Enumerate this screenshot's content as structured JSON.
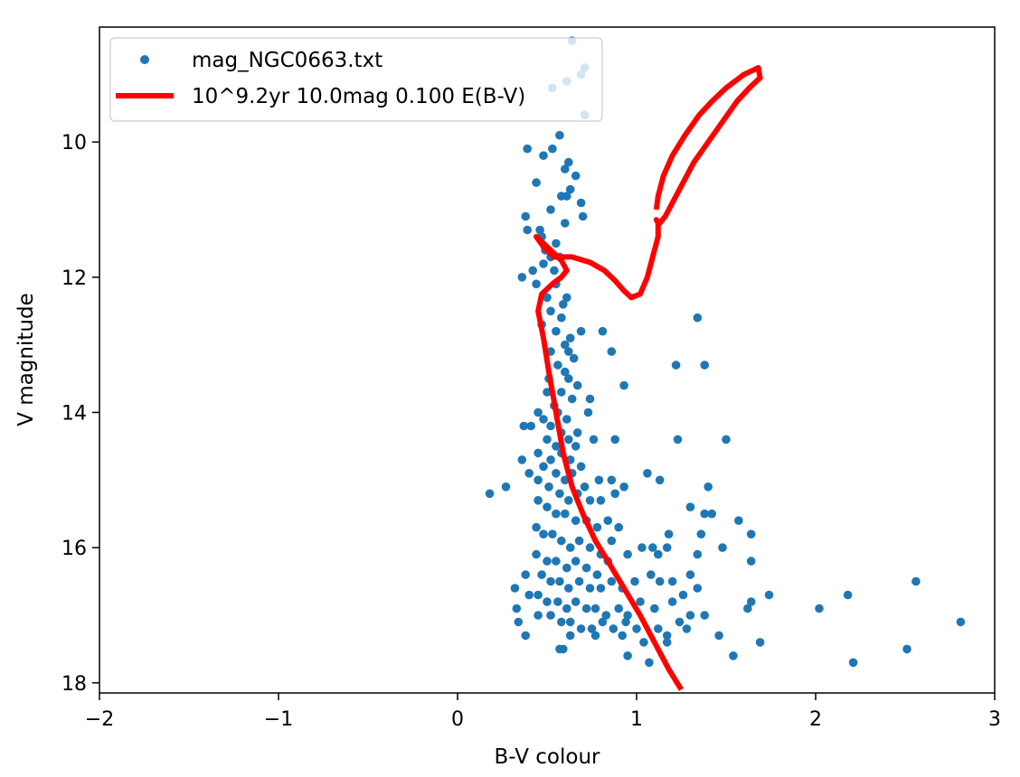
{
  "chart_data": {
    "type": "scatter",
    "title": "",
    "xlabel": "B-V colour",
    "ylabel": "V magnitude",
    "xlim": [
      -2,
      3
    ],
    "ylim": [
      18.15,
      8.3
    ],
    "y_inverted": true,
    "x_ticks": [
      -2,
      -1,
      0,
      1,
      2,
      3
    ],
    "x_tick_labels": [
      "−2",
      "−1",
      "0",
      "1",
      "2",
      "3"
    ],
    "y_ticks": [
      10,
      12,
      14,
      16,
      18
    ],
    "y_tick_labels": [
      "10",
      "12",
      "14",
      "16",
      "18"
    ],
    "grid": false,
    "legend_position": "top-left",
    "colors": {
      "scatter": "#1f77b4",
      "isochrone": "#ff0000"
    },
    "series": [
      {
        "name": "mag_NGC0663.txt",
        "kind": "scatter",
        "color": "#1f77b4",
        "points": [
          [
            0.64,
            8.5
          ],
          [
            0.71,
            8.9
          ],
          [
            0.69,
            9.0
          ],
          [
            0.61,
            9.1
          ],
          [
            0.53,
            9.2
          ],
          [
            0.71,
            9.6
          ],
          [
            0.57,
            9.9
          ],
          [
            0.39,
            10.1
          ],
          [
            0.48,
            10.2
          ],
          [
            0.53,
            10.1
          ],
          [
            0.62,
            10.3
          ],
          [
            0.6,
            10.4
          ],
          [
            0.66,
            10.5
          ],
          [
            0.44,
            10.6
          ],
          [
            0.63,
            10.7
          ],
          [
            0.58,
            10.8
          ],
          [
            0.61,
            10.8
          ],
          [
            0.69,
            10.9
          ],
          [
            0.52,
            11.0
          ],
          [
            0.46,
            11.3
          ],
          [
            0.6,
            11.2
          ],
          [
            0.7,
            11.1
          ],
          [
            0.38,
            11.1
          ],
          [
            0.39,
            11.3
          ],
          [
            0.47,
            11.4
          ],
          [
            0.55,
            11.5
          ],
          [
            0.49,
            11.6
          ],
          [
            0.52,
            11.7
          ],
          [
            0.57,
            11.7
          ],
          [
            0.42,
            11.9
          ],
          [
            0.48,
            11.8
          ],
          [
            0.54,
            11.9
          ],
          [
            0.36,
            12.0
          ],
          [
            0.44,
            12.1
          ],
          [
            0.55,
            12.1
          ],
          [
            0.61,
            12.3
          ],
          [
            0.5,
            12.3
          ],
          [
            0.59,
            12.4
          ],
          [
            0.52,
            12.5
          ],
          [
            0.58,
            12.6
          ],
          [
            0.47,
            12.7
          ],
          [
            0.55,
            12.8
          ],
          [
            0.63,
            12.9
          ],
          [
            0.69,
            12.8
          ],
          [
            0.81,
            12.8
          ],
          [
            0.6,
            13.0
          ],
          [
            0.52,
            13.1
          ],
          [
            0.62,
            13.1
          ],
          [
            0.65,
            13.2
          ],
          [
            0.86,
            13.1
          ],
          [
            0.56,
            13.3
          ],
          [
            0.6,
            13.4
          ],
          [
            0.62,
            13.5
          ],
          [
            0.51,
            13.5
          ],
          [
            0.67,
            13.6
          ],
          [
            0.93,
            13.6
          ],
          [
            1.22,
            13.3
          ],
          [
            1.38,
            13.3
          ],
          [
            1.34,
            12.6
          ],
          [
            0.5,
            13.7
          ],
          [
            0.58,
            13.7
          ],
          [
            0.64,
            13.8
          ],
          [
            0.54,
            13.9
          ],
          [
            0.74,
            13.8
          ],
          [
            0.45,
            14.0
          ],
          [
            0.56,
            14.0
          ],
          [
            0.61,
            14.1
          ],
          [
            0.73,
            14.0
          ],
          [
            0.48,
            14.1
          ],
          [
            0.52,
            14.2
          ],
          [
            0.58,
            14.3
          ],
          [
            0.67,
            14.3
          ],
          [
            0.41,
            14.2
          ],
          [
            0.37,
            14.2
          ],
          [
            0.5,
            14.4
          ],
          [
            0.55,
            14.5
          ],
          [
            0.62,
            14.4
          ],
          [
            0.66,
            14.5
          ],
          [
            0.76,
            14.4
          ],
          [
            0.88,
            14.4
          ],
          [
            1.23,
            14.4
          ],
          [
            1.5,
            14.4
          ],
          [
            0.45,
            14.6
          ],
          [
            0.52,
            14.7
          ],
          [
            0.58,
            14.6
          ],
          [
            0.63,
            14.7
          ],
          [
            0.69,
            14.8
          ],
          [
            0.36,
            14.7
          ],
          [
            0.48,
            14.8
          ],
          [
            0.55,
            14.9
          ],
          [
            0.6,
            15.0
          ],
          [
            0.64,
            14.9
          ],
          [
            0.71,
            15.1
          ],
          [
            0.79,
            15.0
          ],
          [
            0.86,
            15.0
          ],
          [
            0.93,
            15.1
          ],
          [
            1.06,
            14.9
          ],
          [
            1.13,
            15.0
          ],
          [
            0.4,
            14.9
          ],
          [
            0.45,
            15.0
          ],
          [
            0.51,
            15.1
          ],
          [
            0.57,
            15.2
          ],
          [
            0.62,
            15.3
          ],
          [
            0.67,
            15.2
          ],
          [
            0.74,
            15.3
          ],
          [
            0.8,
            15.3
          ],
          [
            0.88,
            15.2
          ],
          [
            1.4,
            15.1
          ],
          [
            0.27,
            15.1
          ],
          [
            0.18,
            15.2
          ],
          [
            0.45,
            15.3
          ],
          [
            0.5,
            15.4
          ],
          [
            0.55,
            15.5
          ],
          [
            0.6,
            15.5
          ],
          [
            0.66,
            15.6
          ],
          [
            0.72,
            15.6
          ],
          [
            0.78,
            15.7
          ],
          [
            0.84,
            15.6
          ],
          [
            0.9,
            15.7
          ],
          [
            1.3,
            15.4
          ],
          [
            1.38,
            15.5
          ],
          [
            1.42,
            15.5
          ],
          [
            1.57,
            15.6
          ],
          [
            1.64,
            15.8
          ],
          [
            0.44,
            15.7
          ],
          [
            0.48,
            15.8
          ],
          [
            0.53,
            15.8
          ],
          [
            0.58,
            15.9
          ],
          [
            0.63,
            16.0
          ],
          [
            0.68,
            15.9
          ],
          [
            0.74,
            16.0
          ],
          [
            0.8,
            16.1
          ],
          [
            0.86,
            15.9
          ],
          [
            1.03,
            16.0
          ],
          [
            1.09,
            16.0
          ],
          [
            1.17,
            16.0
          ],
          [
            1.18,
            15.8
          ],
          [
            1.36,
            15.8
          ],
          [
            1.48,
            16.0
          ],
          [
            0.44,
            16.1
          ],
          [
            0.5,
            16.2
          ],
          [
            0.55,
            16.2
          ],
          [
            0.61,
            16.3
          ],
          [
            0.66,
            16.2
          ],
          [
            0.72,
            16.3
          ],
          [
            0.78,
            16.4
          ],
          [
            0.84,
            16.2
          ],
          [
            0.95,
            16.1
          ],
          [
            1.12,
            16.1
          ],
          [
            1.34,
            16.1
          ],
          [
            1.64,
            16.2
          ],
          [
            0.47,
            16.4
          ],
          [
            0.52,
            16.5
          ],
          [
            0.57,
            16.5
          ],
          [
            0.62,
            16.6
          ],
          [
            0.68,
            16.5
          ],
          [
            0.74,
            16.6
          ],
          [
            0.8,
            16.6
          ],
          [
            0.86,
            16.5
          ],
          [
            0.92,
            16.6
          ],
          [
            0.99,
            16.5
          ],
          [
            1.08,
            16.4
          ],
          [
            1.13,
            16.5
          ],
          [
            1.2,
            16.5
          ],
          [
            1.3,
            16.4
          ],
          [
            0.38,
            16.4
          ],
          [
            0.32,
            16.6
          ],
          [
            0.4,
            16.7
          ],
          [
            0.45,
            16.7
          ],
          [
            0.5,
            16.8
          ],
          [
            0.56,
            16.8
          ],
          [
            0.61,
            16.9
          ],
          [
            0.66,
            16.8
          ],
          [
            0.72,
            16.9
          ],
          [
            0.77,
            16.9
          ],
          [
            0.83,
            17.0
          ],
          [
            0.9,
            16.9
          ],
          [
            0.95,
            17.0
          ],
          [
            1.02,
            16.8
          ],
          [
            1.1,
            16.9
          ],
          [
            1.2,
            16.8
          ],
          [
            1.26,
            16.7
          ],
          [
            1.34,
            16.6
          ],
          [
            1.24,
            17.1
          ],
          [
            1.3,
            17.0
          ],
          [
            1.38,
            17.0
          ],
          [
            1.64,
            16.8
          ],
          [
            1.62,
            16.9
          ],
          [
            1.74,
            16.7
          ],
          [
            2.02,
            16.9
          ],
          [
            2.18,
            16.7
          ],
          [
            2.56,
            16.5
          ],
          [
            0.33,
            16.9
          ],
          [
            0.45,
            17.0
          ],
          [
            0.52,
            17.0
          ],
          [
            0.58,
            17.1
          ],
          [
            0.63,
            17.1
          ],
          [
            0.69,
            17.2
          ],
          [
            0.75,
            17.2
          ],
          [
            0.81,
            17.1
          ],
          [
            0.87,
            17.2
          ],
          [
            0.94,
            17.1
          ],
          [
            1.0,
            17.2
          ],
          [
            1.12,
            17.2
          ],
          [
            1.17,
            17.3
          ],
          [
            1.28,
            17.2
          ],
          [
            0.34,
            17.1
          ],
          [
            0.38,
            17.3
          ],
          [
            0.63,
            17.3
          ],
          [
            0.77,
            17.3
          ],
          [
            0.92,
            17.3
          ],
          [
            1.04,
            17.4
          ],
          [
            1.17,
            17.4
          ],
          [
            1.46,
            17.3
          ],
          [
            1.69,
            17.4
          ],
          [
            2.81,
            17.1
          ],
          [
            0.57,
            17.5
          ],
          [
            0.59,
            17.5
          ],
          [
            0.95,
            17.6
          ],
          [
            1.07,
            17.7
          ],
          [
            1.54,
            17.6
          ],
          [
            2.21,
            17.7
          ],
          [
            2.51,
            17.5
          ]
        ]
      },
      {
        "name": "10^9.2yr 10.0mag 0.100 E(B-V)",
        "kind": "line",
        "color": "#ff0000",
        "points": [
          [
            1.25,
            18.1
          ],
          [
            1.18,
            17.8
          ],
          [
            1.1,
            17.4
          ],
          [
            1.02,
            17.0
          ],
          [
            0.93,
            16.6
          ],
          [
            0.84,
            16.2
          ],
          [
            0.77,
            15.9
          ],
          [
            0.7,
            15.5
          ],
          [
            0.64,
            15.1
          ],
          [
            0.59,
            14.6
          ],
          [
            0.55,
            14.0
          ],
          [
            0.51,
            13.4
          ],
          [
            0.48,
            12.9
          ],
          [
            0.45,
            12.5
          ],
          [
            0.47,
            12.25
          ],
          [
            0.53,
            12.1
          ],
          [
            0.58,
            12.0
          ],
          [
            0.61,
            11.9
          ],
          [
            0.58,
            11.75
          ],
          [
            0.52,
            11.6
          ],
          [
            0.44,
            11.4
          ],
          [
            0.48,
            11.55
          ],
          [
            0.54,
            11.7
          ],
          [
            0.64,
            11.7
          ],
          [
            0.74,
            11.78
          ],
          [
            0.82,
            11.9
          ],
          [
            0.88,
            12.05
          ],
          [
            0.93,
            12.2
          ],
          [
            0.97,
            12.3
          ],
          [
            1.02,
            12.25
          ],
          [
            1.06,
            12.0
          ],
          [
            1.09,
            11.7
          ],
          [
            1.12,
            11.4
          ],
          [
            1.12,
            11.2
          ],
          [
            1.11,
            11.15
          ],
          [
            1.13,
            11.2
          ],
          [
            1.16,
            11.1
          ],
          [
            1.2,
            10.9
          ],
          [
            1.25,
            10.65
          ],
          [
            1.32,
            10.3
          ],
          [
            1.4,
            10.0
          ],
          [
            1.48,
            9.7
          ],
          [
            1.56,
            9.4
          ],
          [
            1.63,
            9.2
          ],
          [
            1.69,
            9.05
          ],
          [
            1.68,
            8.9
          ],
          [
            1.6,
            9.0
          ],
          [
            1.5,
            9.2
          ],
          [
            1.42,
            9.4
          ],
          [
            1.35,
            9.6
          ],
          [
            1.27,
            9.9
          ],
          [
            1.2,
            10.2
          ],
          [
            1.15,
            10.5
          ],
          [
            1.12,
            10.8
          ],
          [
            1.11,
            11.0
          ]
        ]
      }
    ]
  }
}
